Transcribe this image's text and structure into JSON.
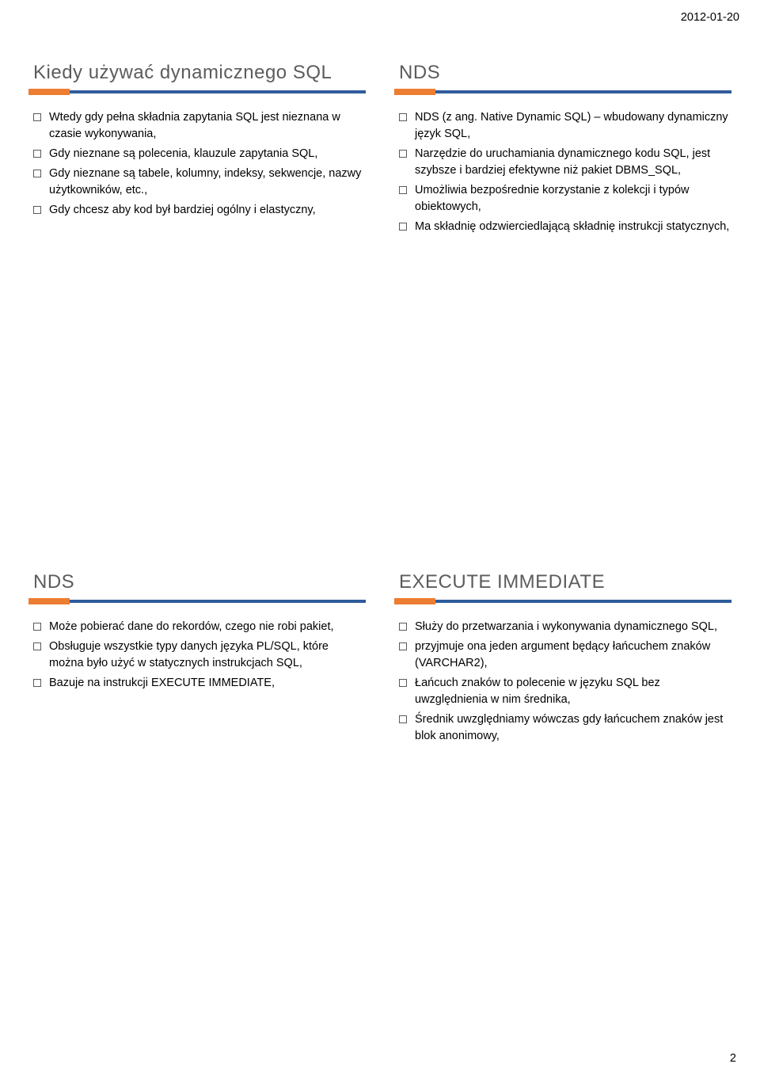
{
  "header": {
    "date": "2012-01-20"
  },
  "footer": {
    "pageNumber": "2"
  },
  "colors": {
    "titleText": "#5c5c5c",
    "ruleOrange": "#ed7d31",
    "ruleBlue": "#2f5c9b",
    "bodyText": "#000000",
    "background": "#ffffff"
  },
  "slides": [
    {
      "title": "Kiedy używać dynamicznego SQL",
      "bullets": [
        "Wtedy gdy pełna składnia zapytania SQL jest nieznana w czasie wykonywania,",
        "Gdy nieznane są polecenia, klauzule zapytania SQL,",
        "Gdy nieznane są tabele, kolumny, indeksy, sekwencje, nazwy użytkowników, etc.,",
        "Gdy chcesz aby kod był bardziej ogólny i elastyczny,"
      ]
    },
    {
      "title": "NDS",
      "bullets": [
        "NDS (z ang. Native Dynamic SQL) – wbudowany dynamiczny język SQL,",
        "Narzędzie do uruchamiania dynamicznego kodu SQL, jest szybsze i bardziej efektywne niż pakiet DBMS_SQL,",
        "Umożliwia bezpośrednie korzystanie z kolekcji i typów obiektowych,",
        "Ma składnię odzwierciedlającą składnię instrukcji statycznych,"
      ]
    },
    {
      "title": "NDS",
      "bullets": [
        "Może pobierać dane do rekordów, czego nie robi pakiet,",
        "Obsługuje wszystkie typy danych języka PL/SQL, które można było użyć w statycznych instrukcjach SQL,",
        "Bazuje na instrukcji EXECUTE IMMEDIATE,"
      ]
    },
    {
      "title": "EXECUTE IMMEDIATE",
      "bullets": [
        "Służy do przetwarzania i wykonywania dynamicznego SQL,",
        "przyjmuje ona jeden argument będący łańcuchem znaków (VARCHAR2),",
        "Łańcuch znaków to polecenie w języku SQL bez uwzględnienia w nim średnika,",
        "Średnik uwzględniamy wówczas gdy łańcuchem znaków jest blok anonimowy,"
      ]
    }
  ]
}
